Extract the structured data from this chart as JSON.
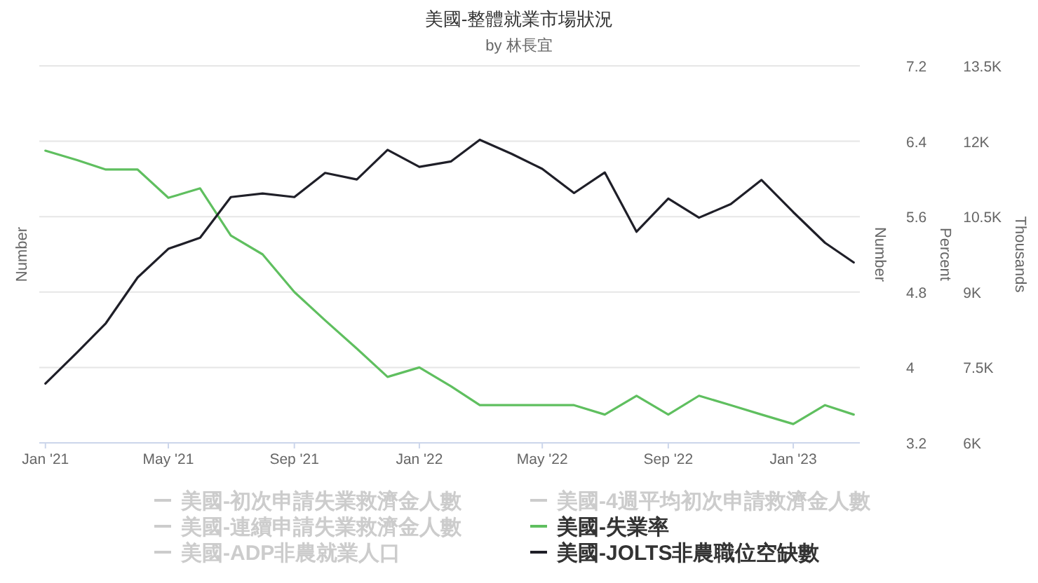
{
  "chart_data": {
    "type": "line",
    "title": "美國-整體就業市場狀況",
    "subtitle": "by 林長宜",
    "ylabel": "Number",
    "y2label": "Percent",
    "y3label": "Thousands",
    "annotations": [
      "Number"
    ],
    "x": [
      "2021-01",
      "2021-02",
      "2021-03",
      "2021-04",
      "2021-05",
      "2021-06",
      "2021-07",
      "2021-08",
      "2021-09",
      "2021-10",
      "2021-11",
      "2021-12",
      "2022-01",
      "2022-02",
      "2022-03",
      "2022-04",
      "2022-05",
      "2022-06",
      "2022-07",
      "2022-08",
      "2022-09",
      "2022-10",
      "2022-11",
      "2022-12",
      "2023-01",
      "2023-02",
      "2023-03"
    ],
    "xlim": [
      "2020-12-26",
      "2023-03-07"
    ],
    "xticks": [
      {
        "value": "2021-01",
        "label": "Jan '21"
      },
      {
        "value": "2021-05",
        "label": "May '21"
      },
      {
        "value": "2021-09",
        "label": "Sep '21"
      },
      {
        "value": "2022-01",
        "label": "Jan '22"
      },
      {
        "value": "2022-05",
        "label": "May '22"
      },
      {
        "value": "2022-09",
        "label": "Sep '22"
      },
      {
        "value": "2023-01",
        "label": "Jan '23"
      }
    ],
    "y2lim": [
      3.2,
      7.2
    ],
    "y2ticks": [
      3.2,
      4,
      4.8,
      5.6,
      6.4,
      7.2
    ],
    "y3lim": [
      6000,
      13500
    ],
    "y3ticks": [
      {
        "value": 6000,
        "label": "6K"
      },
      {
        "value": 7500,
        "label": "7.5K"
      },
      {
        "value": 9000,
        "label": "9K"
      },
      {
        "value": 10500,
        "label": "10.5K"
      },
      {
        "value": 12000,
        "label": "12K"
      },
      {
        "value": 13500,
        "label": "13.5K"
      }
    ],
    "grid": "y",
    "legend": "bottom",
    "series": [
      {
        "name": "美國-初次申請失業救濟金人數",
        "color": "#cccccc",
        "values": [
          null,
          null,
          null,
          null,
          null,
          null,
          null,
          null,
          null,
          null,
          null,
          null,
          null,
          null,
          null,
          null,
          null,
          null,
          null,
          null,
          null,
          null,
          null,
          null,
          null,
          null,
          null
        ]
      },
      {
        "name": "美國-4週平均初次申請救濟金人數",
        "color": "#cccccc",
        "values": [
          null,
          null,
          null,
          null,
          null,
          null,
          null,
          null,
          null,
          null,
          null,
          null,
          null,
          null,
          null,
          null,
          null,
          null,
          null,
          null,
          null,
          null,
          null,
          null,
          null,
          null,
          null
        ]
      },
      {
        "name": "美國-連續申請失業救濟金人數",
        "color": "#cccccc",
        "values": [
          null,
          null,
          null,
          null,
          null,
          null,
          null,
          null,
          null,
          null,
          null,
          null,
          null,
          null,
          null,
          null,
          null,
          null,
          null,
          null,
          null,
          null,
          null,
          null,
          null,
          null,
          null
        ]
      },
      {
        "name": "美國-失業率",
        "color": "#5fbf5f",
        "axis": "y2",
        "values": [
          6.3,
          6.2,
          6.1,
          6.1,
          5.8,
          5.9,
          5.4,
          5.2,
          4.8,
          4.5,
          4.2,
          3.9,
          4.0,
          3.8,
          3.6,
          3.6,
          3.6,
          3.6,
          3.5,
          3.7,
          3.5,
          3.7,
          3.6,
          3.5,
          3.4,
          3.6,
          3.5
        ]
      },
      {
        "name": "美國-ADP非農就業人口",
        "color": "#cccccc",
        "values": [
          null,
          null,
          null,
          null,
          null,
          null,
          null,
          null,
          null,
          null,
          null,
          null,
          null,
          null,
          null,
          null,
          null,
          null,
          null,
          null,
          null,
          null,
          null,
          null,
          null,
          null,
          null
        ]
      },
      {
        "name": "美國-JOLTS非農職位空缺數",
        "color": "#1f1f28",
        "axis": "y3",
        "values": [
          7180,
          7800,
          8380,
          9290,
          9860,
          10080,
          10890,
          10960,
          10890,
          11370,
          11240,
          11830,
          11490,
          11600,
          12030,
          11750,
          11450,
          10970,
          11380,
          10200,
          10860,
          10480,
          10750,
          11230,
          10590,
          9980,
          9590
        ]
      }
    ]
  }
}
